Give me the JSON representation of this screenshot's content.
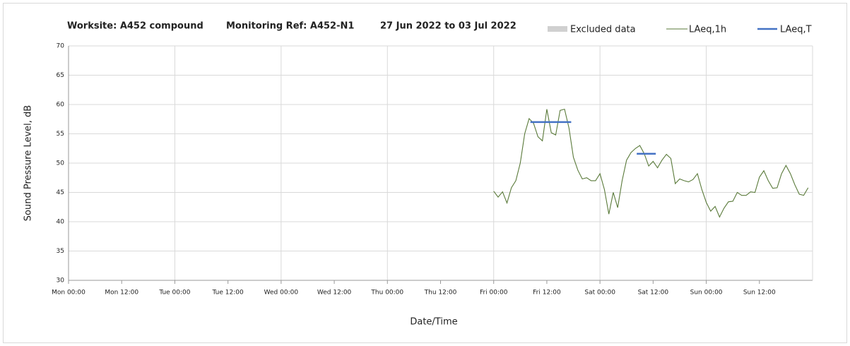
{
  "chart_data": {
    "type": "line",
    "title_parts": [
      "Worksite: A452 compound",
      "Monitoring Ref: A452-N1",
      "27 Jun 2022 to 03 Jul 2022"
    ],
    "xlabel": "Date/Time",
    "ylabel": "Sound Pressure Level, dB",
    "xlim": [
      0,
      168
    ],
    "xticks": [
      {
        "value": 0,
        "label": "Mon 00:00"
      },
      {
        "value": 12,
        "label": "Mon 12:00"
      },
      {
        "value": 24,
        "label": "Tue 00:00"
      },
      {
        "value": 36,
        "label": "Tue 12:00"
      },
      {
        "value": 48,
        "label": "Wed 00:00"
      },
      {
        "value": 60,
        "label": "Wed 12:00"
      },
      {
        "value": 72,
        "label": "Thu 00:00"
      },
      {
        "value": 84,
        "label": "Thu 12:00"
      },
      {
        "value": 96,
        "label": "Fri 00:00"
      },
      {
        "value": 108,
        "label": "Fri 12:00"
      },
      {
        "value": 120,
        "label": "Sat 00:00"
      },
      {
        "value": 132,
        "label": "Sat 12:00"
      },
      {
        "value": 144,
        "label": "Sun 00:00"
      },
      {
        "value": 156,
        "label": "Sun 12:00"
      }
    ],
    "ylim": [
      30,
      70
    ],
    "yticks": [
      30,
      35,
      40,
      45,
      50,
      55,
      60,
      65,
      70
    ],
    "grid": true,
    "series": [
      {
        "name": "Excluded data",
        "color": "#d0d0d0"
      },
      {
        "name": "LAeq,1h",
        "color": "#5a7a3a",
        "x": [
          96,
          97,
          98,
          99,
          100,
          101,
          102,
          103,
          104,
          105,
          106,
          107,
          108,
          109,
          110,
          111,
          112,
          113,
          114,
          115,
          116,
          117,
          118,
          119,
          120,
          121,
          122,
          123,
          124,
          125,
          126,
          127,
          128,
          129,
          130,
          131,
          132,
          133,
          134,
          135,
          136,
          137,
          138,
          139,
          140,
          141,
          142,
          143,
          144,
          145,
          146,
          147,
          148,
          149,
          150,
          151,
          152,
          153,
          154,
          155,
          156,
          157,
          158,
          159,
          160,
          161,
          162,
          163,
          164,
          165,
          166,
          167
        ],
        "values": [
          45.2,
          44.2,
          45.1,
          43.2,
          45.8,
          47,
          50,
          55,
          57.6,
          56.8,
          54.5,
          53.8,
          59.2,
          55.2,
          54.8,
          59,
          59.2,
          56,
          51,
          48.8,
          47.3,
          47.5,
          47,
          47,
          48.2,
          45.5,
          41.3,
          45,
          42.4,
          47,
          50.5,
          51.8,
          52.5,
          53,
          51.6,
          49.5,
          50.3,
          49.2,
          50.5,
          51.5,
          50.8,
          46.5,
          47.3,
          47,
          46.8,
          47.2,
          48.2,
          45.5,
          43.3,
          41.8,
          42.6,
          40.8,
          42.3,
          43.4,
          43.5,
          45,
          44.5,
          44.5,
          45.1,
          45,
          47.6,
          48.7,
          47,
          45.7,
          45.8,
          48.2,
          49.6,
          48.2,
          46.3,
          44.7,
          44.5,
          45.8
        ]
      },
      {
        "name": "LAeq,T",
        "color": "#4472c4",
        "segments": [
          {
            "x": [
              104.3,
              113.5
            ],
            "value": 57
          },
          {
            "x": [
              128.3,
              132.6
            ],
            "value": 51.6
          }
        ]
      }
    ]
  }
}
